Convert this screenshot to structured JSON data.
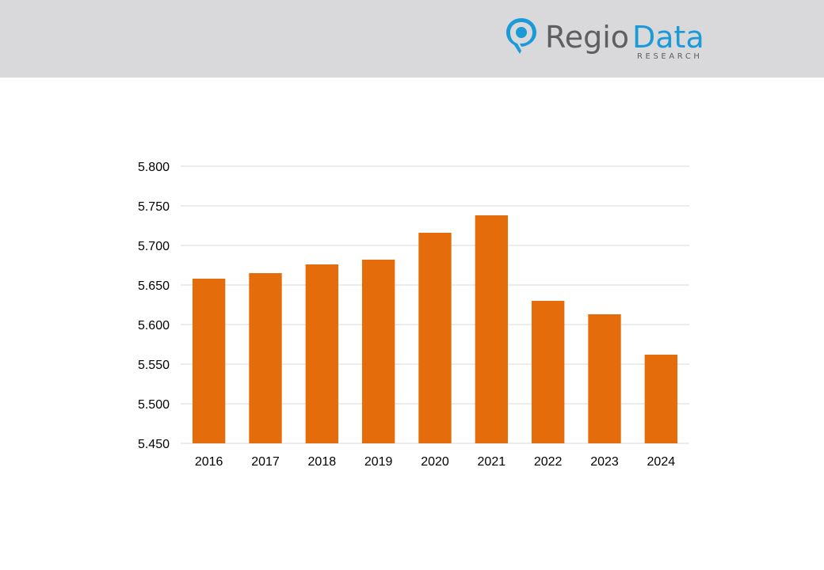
{
  "brand": {
    "name_part1": "Regio",
    "name_part2": "Data",
    "tagline": "RESEARCH",
    "colors": {
      "dark": "#5f5f61",
      "accent": "#1a9ad7"
    }
  },
  "chart_data": {
    "type": "bar",
    "categories": [
      "2016",
      "2017",
      "2018",
      "2019",
      "2020",
      "2021",
      "2022",
      "2023",
      "2024"
    ],
    "values": [
      5.658,
      5.665,
      5.676,
      5.682,
      5.716,
      5.738,
      5.63,
      5.613,
      5.562
    ],
    "ylim": [
      5.45,
      5.8
    ],
    "yticks": [
      "5.450",
      "5.500",
      "5.550",
      "5.600",
      "5.650",
      "5.700",
      "5.750",
      "5.800"
    ],
    "yticks_values": [
      5.45,
      5.5,
      5.55,
      5.6,
      5.65,
      5.7,
      5.75,
      5.8
    ],
    "grid": true,
    "bar_color": "#e46c0a",
    "grid_color": "#d9d9d9"
  }
}
